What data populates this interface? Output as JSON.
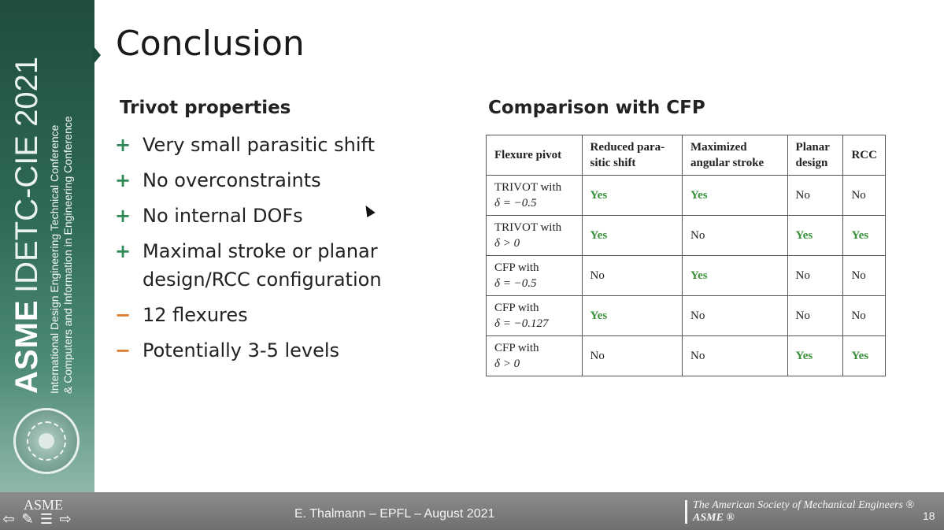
{
  "slide": {
    "title": "Conclusion",
    "page_number": "18"
  },
  "sidebar": {
    "asme": "ASME",
    "event": "IDETC-CIE 2021",
    "line1": "International Design Engineering Technical Conference",
    "line2": "& Computers and Information in Engineering Conference"
  },
  "properties": {
    "heading": "Trivot properties",
    "items": [
      {
        "marker": "+",
        "text": "Very small parasitic shift"
      },
      {
        "marker": "+",
        "text": "No overconstraints"
      },
      {
        "marker": "+",
        "text": "No internal DOFs"
      },
      {
        "marker": "+",
        "text": "Maximal stroke or planar design/RCC configuration"
      },
      {
        "marker": "−",
        "text": "12 flexures"
      },
      {
        "marker": "−",
        "text": "Potentially 3-5 levels"
      }
    ]
  },
  "comparison": {
    "heading": "Comparison with CFP",
    "headers": [
      "Flexure pivot",
      "Reduced para-sitic shift",
      "Maximized angular stroke",
      "Planar design",
      "RCC"
    ],
    "rows": [
      {
        "name": "TRIVOT  with",
        "cond": "δ = −0.5",
        "cells": [
          "Yes",
          "Yes",
          "No",
          "No"
        ]
      },
      {
        "name": "TRIVOT  with",
        "cond": "δ > 0",
        "cells": [
          "Yes",
          "No",
          "Yes",
          "Yes"
        ]
      },
      {
        "name": "CFP with",
        "cond": "δ = −0.5",
        "cells": [
          "No",
          "Yes",
          "No",
          "No"
        ]
      },
      {
        "name": "CFP with",
        "cond": "δ = −0.127",
        "cells": [
          "Yes",
          "No",
          "No",
          "No"
        ]
      },
      {
        "name": "CFP with",
        "cond": "δ > 0",
        "cells": [
          "No",
          "No",
          "Yes",
          "Yes"
        ]
      }
    ],
    "yes_color": "#3a8f3a"
  },
  "footer": {
    "logo": "ASME",
    "credit": "E. Thalmann – EPFL – August 2021",
    "society": "The American Society of Mechanical Engineers ®",
    "asme": "ASME ®"
  }
}
